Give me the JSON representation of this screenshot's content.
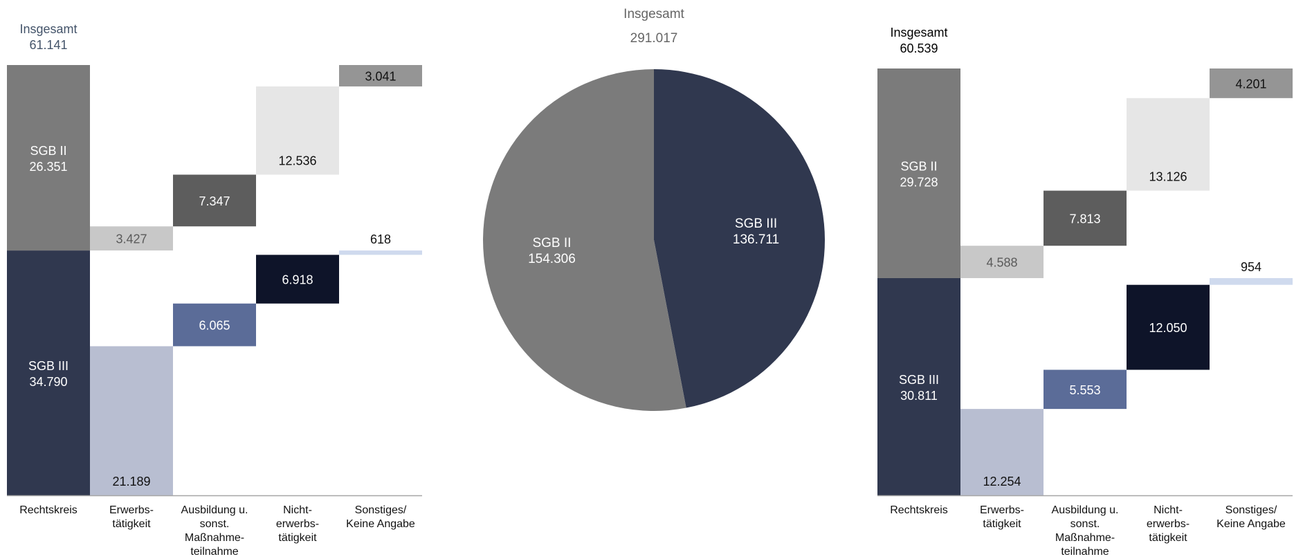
{
  "chart_data": [
    {
      "type": "bar",
      "subtype": "waterfall",
      "total_label": "Insgesamt",
      "total_value": "61.141",
      "total": 61141,
      "categories": [
        "Rechtskreis",
        "Erwerbs-\ntätigkeit",
        "Ausbildung u.\nsonst.\nMaßnahme-\nteilnahme",
        "Nicht-\nerwerbs-\ntätigkeit",
        "Sonstiges/\nKeine Angabe"
      ],
      "series": [
        {
          "name": "SGB II",
          "values": [
            26351,
            3427,
            7347,
            12536,
            3041
          ],
          "labels": [
            "26.351",
            "3.427",
            "7.347",
            "12.536",
            "3.041"
          ]
        },
        {
          "name": "SGB III",
          "values": [
            34790,
            21189,
            6065,
            6918,
            618
          ],
          "labels": [
            "34.790",
            "21.189",
            "6.065",
            "6.918",
            "618"
          ]
        }
      ],
      "ylim": [
        0,
        61141
      ],
      "grid": false,
      "legend": "none"
    },
    {
      "type": "pie",
      "total_label": "Insgesamt",
      "total_value": "291.017",
      "total": 291017,
      "slices": [
        {
          "name": "SGB III",
          "value": 136711,
          "label": "136.711",
          "color": "#30384f",
          "text_color": "#ffffff"
        },
        {
          "name": "SGB II",
          "value": 154306,
          "label": "154.306",
          "color": "#7b7b7b",
          "text_color": "#ffffff"
        }
      ]
    },
    {
      "type": "bar",
      "subtype": "waterfall",
      "total_label": "Insgesamt",
      "total_value": "60.539",
      "total": 60539,
      "categories": [
        "Rechtskreis",
        "Erwerbs-\ntätigkeit",
        "Ausbildung u.\nsonst.\nMaßnahme-\nteilnahme",
        "Nicht-\nerwerbs-\ntätigkeit",
        "Sonstiges/\nKeine Angabe"
      ],
      "series": [
        {
          "name": "SGB II",
          "values": [
            29728,
            4588,
            7813,
            13126,
            4201
          ],
          "labels": [
            "29.728",
            "4.588",
            "7.813",
            "13.126",
            "4.201"
          ]
        },
        {
          "name": "SGB III",
          "values": [
            30811,
            12254,
            5553,
            12050,
            954
          ],
          "labels": [
            "30.811",
            "12.254",
            "5.553",
            "12.050",
            "954"
          ]
        }
      ],
      "ylim": [
        0,
        60539
      ],
      "grid": false,
      "legend": "none"
    }
  ],
  "colors": {
    "sgb2_total": "#7b7b7b",
    "sgb3_total": "#30384f",
    "sgb2_categories": [
      "#c8c8c8",
      "#5d5d5d",
      "#e6e6e6",
      "#959595"
    ],
    "sgb3_categories": [
      "#b8bed1",
      "#5b6c98",
      "#0e1429",
      "#cfdaee"
    ],
    "sgb2_category_text": [
      "#5a5a5a",
      "#ffffff",
      "#111111",
      "#111111"
    ],
    "sgb3_category_text": [
      "#111111",
      "#ffffff",
      "#ffffff",
      "#111111"
    ],
    "axis": "#a6a6a6",
    "total_text_left": "#44546a",
    "total_text_center": "#666666",
    "total_text_right": "#000000"
  }
}
